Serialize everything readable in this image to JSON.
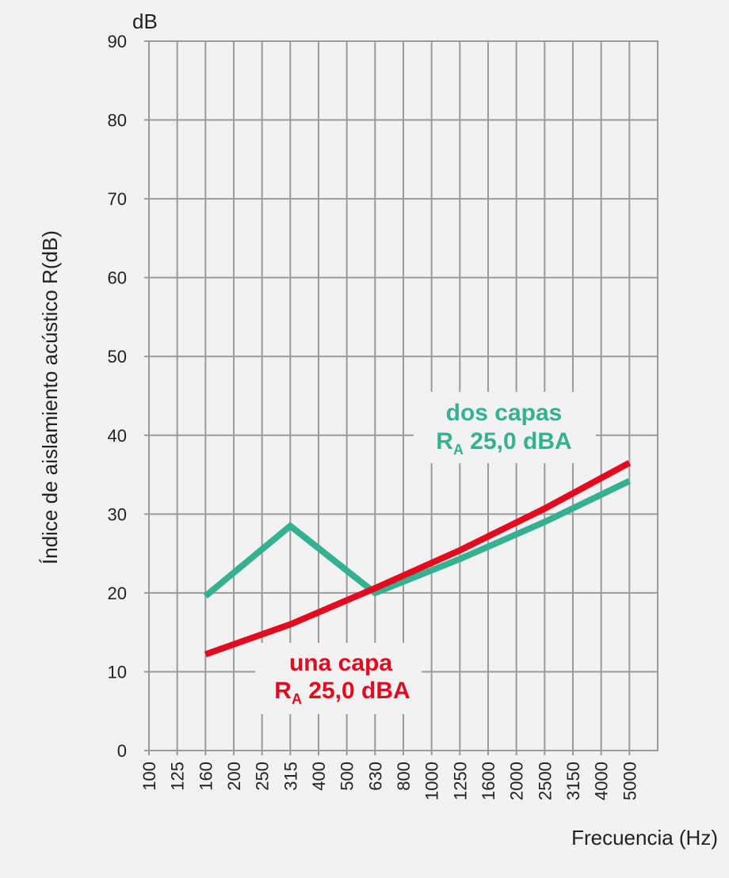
{
  "chart_data": {
    "type": "line",
    "title": "",
    "xlabel": "Frecuencia (Hz)",
    "ylabel": "Índice de aislamiento acústico R(dB)",
    "y_unit": "dB",
    "ylim": [
      0,
      90
    ],
    "y_ticks": [
      "0",
      "10",
      "20",
      "30",
      "40",
      "50",
      "60",
      "70",
      "80",
      "90"
    ],
    "x_categories": [
      "100",
      "125",
      "160",
      "200",
      "250",
      "315",
      "400",
      "500",
      "630",
      "800",
      "1000",
      "1250",
      "1600",
      "2000",
      "2500",
      "3150",
      "4000",
      "5000"
    ],
    "x_scale": "log (third-octave bands)",
    "grid": true,
    "legend": "none (inline annotations)",
    "series": [
      {
        "key": "una_capa",
        "color": "#e30a1f",
        "x": [
          "125",
          "250",
          "500",
          "1000",
          "2000",
          "4000"
        ],
        "values": [
          12.2,
          16,
          20.6,
          25.4,
          30.7,
          36.5
        ]
      },
      {
        "key": "dos_capas",
        "color": "#35b192",
        "x": [
          "125",
          "250",
          "500",
          "1000",
          "2000",
          "4000"
        ],
        "values": [
          19.6,
          28.5,
          20,
          24.3,
          29,
          34.2
        ]
      }
    ],
    "annotations": {
      "una_capa": {
        "line1": "una capa",
        "ra_letter": "R",
        "ra_sub": "A",
        "ra_value": " 25,0 dBA",
        "color": "#e30a1f"
      },
      "dos_capas": {
        "line1": "dos capas",
        "ra_letter": "R",
        "ra_sub": "A",
        "ra_value": " 25,0 dBA",
        "color": "#35b192"
      }
    }
  }
}
